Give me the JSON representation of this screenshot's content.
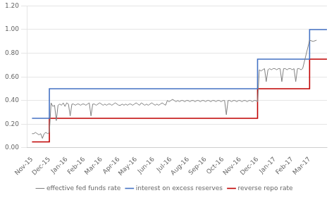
{
  "chart_data": {
    "type": "line",
    "xlim": [
      -0.3,
      17.0
    ],
    "xticks": [
      {
        "value": 0,
        "label": "Nov-15"
      },
      {
        "value": 1,
        "label": "Dec-15"
      },
      {
        "value": 2,
        "label": "Jan-16"
      },
      {
        "value": 3,
        "label": "Feb-16"
      },
      {
        "value": 4,
        "label": "Mar-16"
      },
      {
        "value": 5,
        "label": "Apr-16"
      },
      {
        "value": 6,
        "label": "May-16"
      },
      {
        "value": 7,
        "label": "Jun-16"
      },
      {
        "value": 8,
        "label": "Jul-16"
      },
      {
        "value": 9,
        "label": "Aug-16"
      },
      {
        "value": 10,
        "label": "Sep-16"
      },
      {
        "value": 11,
        "label": "Oct-16"
      },
      {
        "value": 12,
        "label": "Nov-16"
      },
      {
        "value": 13,
        "label": "Dec-16"
      },
      {
        "value": 14,
        "label": "Jan-17"
      },
      {
        "value": 15,
        "label": "Feb-17"
      },
      {
        "value": 16,
        "label": "Mar-17"
      }
    ],
    "ylim": [
      0.0,
      1.2
    ],
    "yticks": [
      {
        "value": 0.0,
        "label": "0.00"
      },
      {
        "value": 0.2,
        "label": "0.20"
      },
      {
        "value": 0.4,
        "label": "0.40"
      },
      {
        "value": 0.6,
        "label": "0.60"
      },
      {
        "value": 0.8,
        "label": "0.80"
      },
      {
        "value": 1.0,
        "label": "1.00"
      },
      {
        "value": 1.2,
        "label": "1.20"
      }
    ],
    "grid": "y",
    "legend": "bottom",
    "series": [
      {
        "name": "effective fed funds rate",
        "color": "#808080",
        "x": [
          0.0,
          0.1,
          0.2,
          0.3,
          0.4,
          0.5,
          0.6,
          0.7,
          0.8,
          0.9,
          1.0,
          1.1,
          1.2,
          1.3,
          1.4,
          1.5,
          1.6,
          1.7,
          1.8,
          1.9,
          2.0,
          2.1,
          2.2,
          2.3,
          2.4,
          2.5,
          2.6,
          2.7,
          2.8,
          2.9,
          3.0,
          3.1,
          3.2,
          3.3,
          3.4,
          3.5,
          3.6,
          3.7,
          3.8,
          3.9,
          4.0,
          4.1,
          4.2,
          4.3,
          4.4,
          4.5,
          4.6,
          4.7,
          4.8,
          4.9,
          5.0,
          5.1,
          5.2,
          5.3,
          5.4,
          5.5,
          5.6,
          5.7,
          5.8,
          5.9,
          6.0,
          6.1,
          6.2,
          6.3,
          6.4,
          6.5,
          6.6,
          6.7,
          6.8,
          6.9,
          7.0,
          7.1,
          7.2,
          7.3,
          7.4,
          7.5,
          7.6,
          7.7,
          7.8,
          7.9,
          8.0,
          8.1,
          8.2,
          8.3,
          8.4,
          8.5,
          8.6,
          8.7,
          8.8,
          8.9,
          9.0,
          9.1,
          9.2,
          9.3,
          9.4,
          9.5,
          9.6,
          9.7,
          9.8,
          9.9,
          10.0,
          10.1,
          10.2,
          10.3,
          10.4,
          10.5,
          10.6,
          10.7,
          10.8,
          10.9,
          11.0,
          11.1,
          11.2,
          11.3,
          11.4,
          11.5,
          11.6,
          11.7,
          11.8,
          11.9,
          12.0,
          12.1,
          12.2,
          12.3,
          12.4,
          12.5,
          12.6,
          12.7,
          12.8,
          12.9,
          13.0,
          13.1,
          13.2,
          13.3,
          13.4,
          13.5,
          13.6,
          13.7,
          13.8,
          13.9,
          14.0,
          14.1,
          14.2,
          14.3,
          14.4,
          14.5,
          14.6,
          14.7,
          14.8,
          14.9,
          15.0,
          15.1,
          15.2,
          15.3,
          15.4,
          15.5,
          15.6,
          16.0,
          16.2,
          16.4
        ],
        "values": [
          0.12,
          0.12,
          0.13,
          0.12,
          0.11,
          0.12,
          0.08,
          0.12,
          0.13,
          0.12,
          0.13,
          0.38,
          0.35,
          0.36,
          0.23,
          0.36,
          0.37,
          0.36,
          0.38,
          0.35,
          0.38,
          0.37,
          0.27,
          0.37,
          0.37,
          0.36,
          0.37,
          0.37,
          0.36,
          0.37,
          0.37,
          0.36,
          0.37,
          0.38,
          0.27,
          0.37,
          0.37,
          0.36,
          0.37,
          0.38,
          0.37,
          0.36,
          0.37,
          0.36,
          0.37,
          0.37,
          0.36,
          0.37,
          0.38,
          0.37,
          0.36,
          0.36,
          0.37,
          0.36,
          0.37,
          0.36,
          0.37,
          0.37,
          0.36,
          0.37,
          0.38,
          0.37,
          0.36,
          0.38,
          0.37,
          0.36,
          0.37,
          0.36,
          0.37,
          0.38,
          0.37,
          0.36,
          0.37,
          0.36,
          0.37,
          0.38,
          0.37,
          0.36,
          0.4,
          0.39,
          0.4,
          0.41,
          0.4,
          0.39,
          0.4,
          0.39,
          0.4,
          0.4,
          0.39,
          0.4,
          0.4,
          0.39,
          0.4,
          0.4,
          0.39,
          0.4,
          0.4,
          0.39,
          0.4,
          0.4,
          0.39,
          0.4,
          0.4,
          0.39,
          0.4,
          0.4,
          0.39,
          0.4,
          0.4,
          0.39,
          0.4,
          0.4,
          0.28,
          0.4,
          0.4,
          0.39,
          0.4,
          0.4,
          0.39,
          0.4,
          0.4,
          0.39,
          0.4,
          0.4,
          0.39,
          0.4,
          0.4,
          0.39,
          0.4,
          0.4,
          0.39,
          0.66,
          0.65,
          0.66,
          0.67,
          0.56,
          0.66,
          0.67,
          0.66,
          0.67,
          0.67,
          0.66,
          0.67,
          0.67,
          0.56,
          0.67,
          0.67,
          0.66,
          0.67,
          0.67,
          0.66,
          0.67,
          0.56,
          0.67,
          0.67,
          0.66,
          0.67,
          0.91,
          0.9,
          0.91
        ]
      },
      {
        "name": "interest on excess reserves",
        "color": "#4472c4",
        "x": [
          0,
          1,
          1,
          13,
          13,
          16,
          16,
          17
        ],
        "values": [
          0.25,
          0.25,
          0.5,
          0.5,
          0.75,
          0.75,
          1.0,
          1.0
        ]
      },
      {
        "name": "reverse repo rate",
        "color": "#c00000",
        "x": [
          0,
          0,
          1,
          1,
          13,
          13,
          16,
          16,
          17
        ],
        "values": [
          0.05,
          0.05,
          0.05,
          0.25,
          0.25,
          0.5,
          0.5,
          0.75,
          0.75
        ]
      }
    ]
  }
}
